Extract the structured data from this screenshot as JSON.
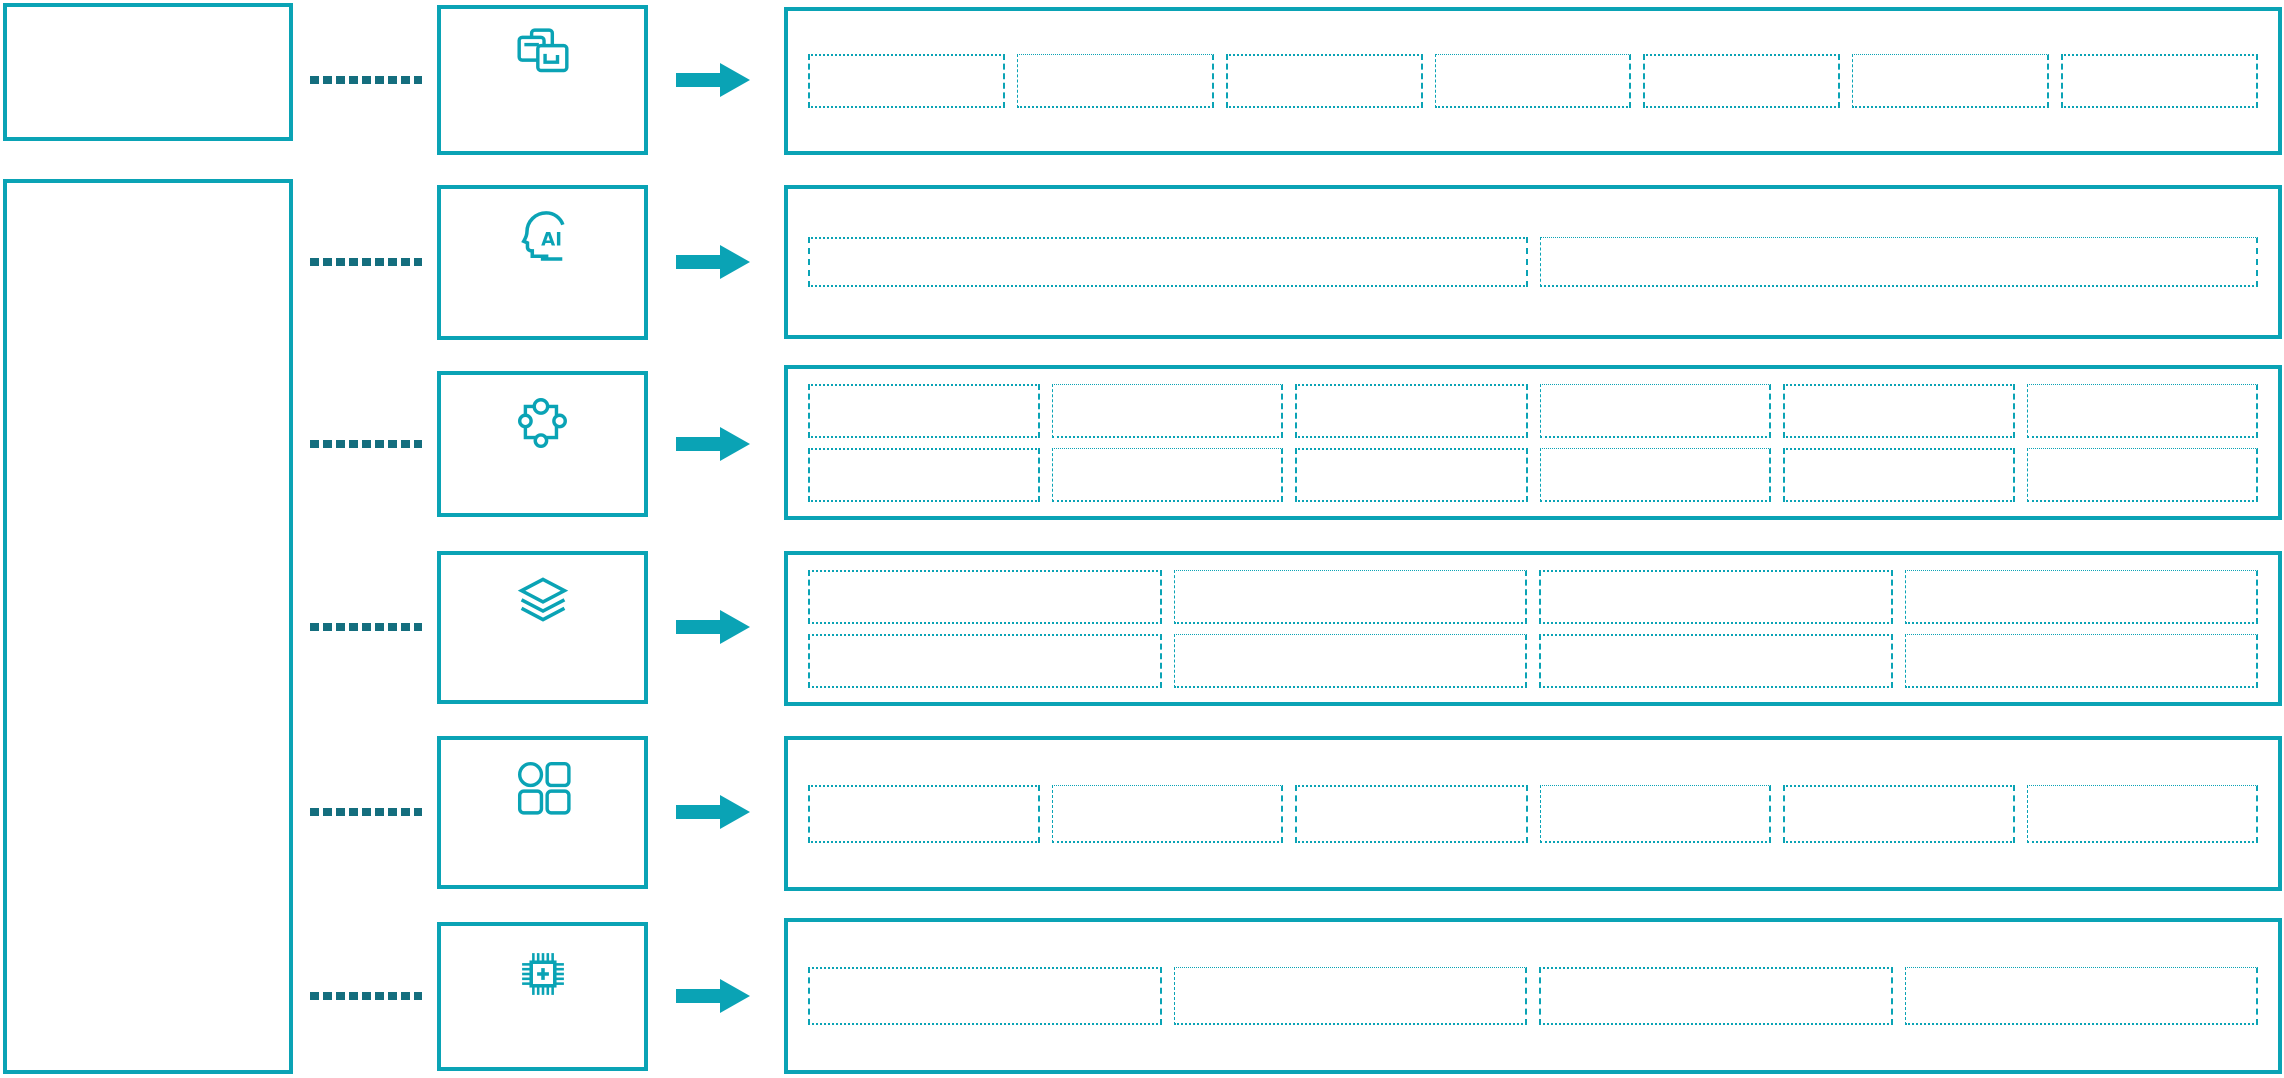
{
  "diagram": {
    "background_color": "#ffffff",
    "accent_color": "#0aa3b5",
    "connector_color": "#146e7e",
    "left_column": {
      "top_box_text": "",
      "tall_box_text": ""
    },
    "rows": [
      {
        "icon": "overlapping-windows-icon",
        "icon_text": "",
        "placeholder_rows": 1,
        "placeholder_cols": 7
      },
      {
        "icon": "ai-head-icon",
        "icon_text": "AI",
        "placeholder_rows": 1,
        "placeholder_cols": 2
      },
      {
        "icon": "puzzle-piece-icon",
        "icon_text": "",
        "placeholder_rows": 2,
        "placeholder_cols": 6
      },
      {
        "icon": "layers-icon",
        "icon_text": "",
        "placeholder_rows": 2,
        "placeholder_cols": 4
      },
      {
        "icon": "apps-grid-icon",
        "icon_text": "",
        "placeholder_rows": 1,
        "placeholder_cols": 6
      },
      {
        "icon": "chip-plus-icon",
        "icon_text": "",
        "placeholder_rows": 1,
        "placeholder_cols": 4
      }
    ]
  }
}
